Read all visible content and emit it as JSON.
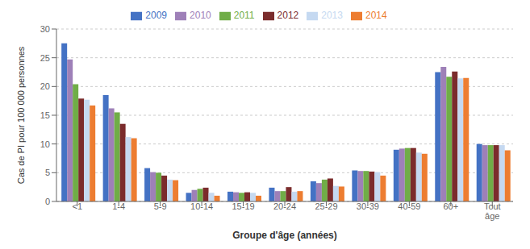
{
  "chart_data": {
    "type": "bar",
    "xlabel": "Groupe d'âge (années)",
    "ylabel": "Cas de PI pour 100 000 personnes",
    "categories": [
      "<1",
      "1-4",
      "5-9",
      "10-14",
      "15-19",
      "20-24",
      "25-29",
      "30-39",
      "40-59",
      "60+",
      "Tout\nâge"
    ],
    "series": [
      {
        "name": "2009",
        "color": "#4472C4",
        "values": [
          27.5,
          18.5,
          5.8,
          1.5,
          1.7,
          2.4,
          3.5,
          5.4,
          9.0,
          22.5,
          10.0
        ]
      },
      {
        "name": "2010",
        "color": "#9E80B8",
        "values": [
          24.7,
          16.2,
          5.1,
          2.0,
          1.6,
          1.8,
          3.2,
          5.3,
          9.2,
          23.4,
          9.8
        ]
      },
      {
        "name": "2011",
        "color": "#70AD47",
        "values": [
          20.4,
          15.5,
          5.0,
          2.2,
          1.5,
          1.8,
          3.8,
          5.3,
          9.3,
          21.7,
          9.8
        ]
      },
      {
        "name": "2012",
        "color": "#7B2C2C",
        "values": [
          17.9,
          13.5,
          4.5,
          2.4,
          1.6,
          2.5,
          4.0,
          5.2,
          9.3,
          22.6,
          9.8
        ]
      },
      {
        "name": "2013",
        "color": "#C5D9F1",
        "values": [
          17.7,
          11.2,
          3.8,
          1.5,
          1.5,
          1.7,
          2.7,
          5.1,
          8.5,
          21.4,
          9.8
        ]
      },
      {
        "name": "2014",
        "color": "#ED7D31",
        "values": [
          16.7,
          11.0,
          3.7,
          1.0,
          1.0,
          1.8,
          2.6,
          4.5,
          8.3,
          21.5,
          8.9
        ]
      }
    ],
    "ylim": [
      0,
      30
    ],
    "yticks": [
      0,
      5,
      10,
      15,
      20,
      25,
      30
    ],
    "grid": true,
    "legend": "top"
  }
}
